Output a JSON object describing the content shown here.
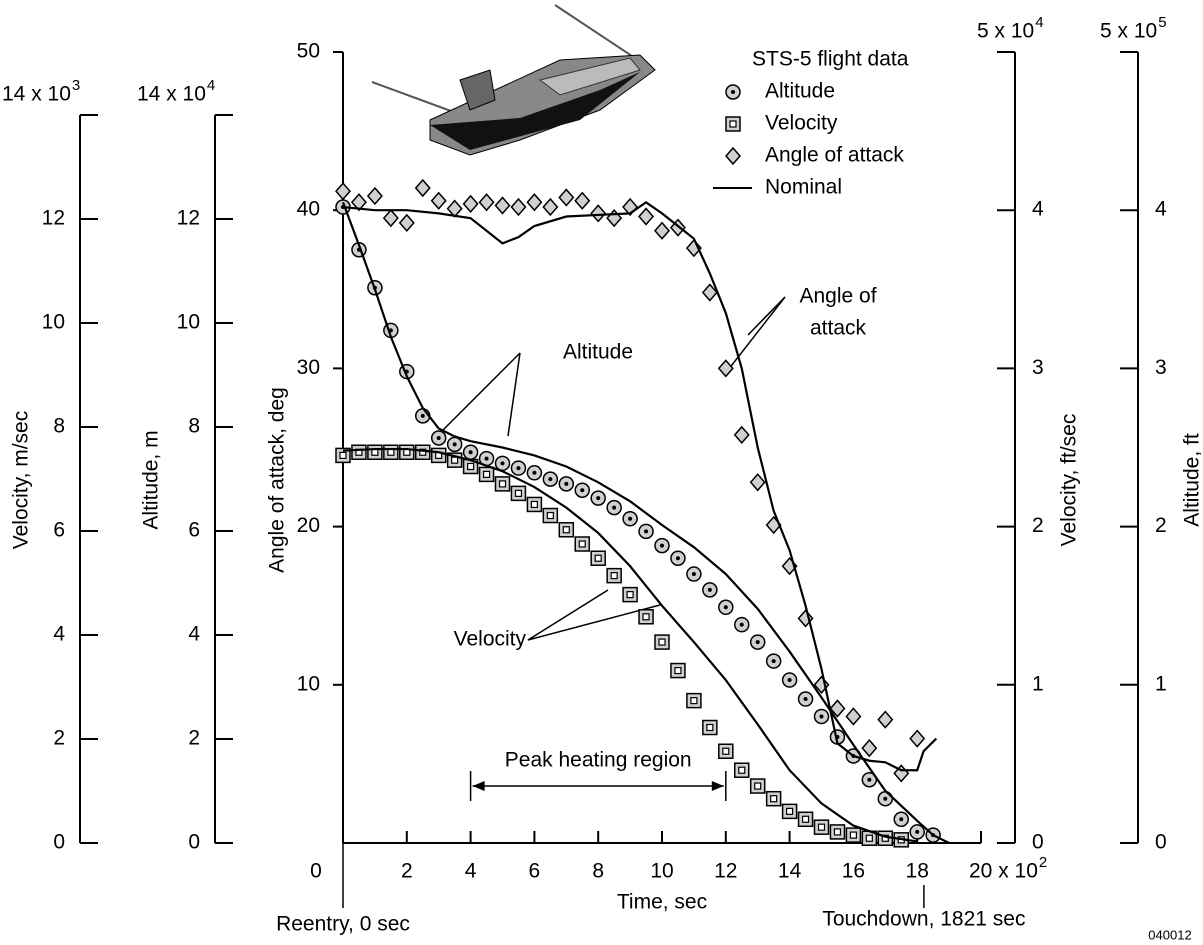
{
  "chart_data": {
    "type": "line",
    "xlabel": "Time, sec",
    "xlim": [
      0,
      20
    ],
    "xticks": [
      0,
      2,
      4,
      6,
      8,
      10,
      12,
      14,
      16,
      18,
      {
        "value": 20,
        "label": "20 x 10"
      }
    ],
    "x_exponent": "2",
    "ylabel": "Angle of attack, deg",
    "ylim": [
      0,
      50
    ],
    "yticks": [
      10,
      20,
      30,
      40,
      50
    ],
    "y2label": "Velocity, ft/sec",
    "y2lim": [
      0,
      5
    ],
    "y2ticks": [
      0,
      1,
      2,
      3,
      4,
      {
        "value": 5,
        "label": "5 x 10"
      }
    ],
    "y2_exponent": "4",
    "y3label": "Altitude, ft",
    "y3lim": [
      0,
      5
    ],
    "y3ticks": [
      0,
      1,
      2,
      3,
      4,
      {
        "value": 5,
        "label": "5 x 10"
      }
    ],
    "y3_exponent": "5",
    "metric_axes": [
      {
        "label": "Altitude, m",
        "lim": [
          0,
          14
        ],
        "ticks": [
          0,
          2,
          4,
          6,
          8,
          10,
          12,
          {
            "value": 14,
            "label": "14 x 10"
          }
        ],
        "exponent": "4"
      },
      {
        "label": "Velocity, m/sec",
        "lim": [
          0,
          14
        ],
        "ticks": [
          0,
          2,
          4,
          6,
          8,
          10,
          12,
          {
            "value": 14,
            "label": "14 x 10"
          }
        ],
        "exponent": "3"
      }
    ],
    "legend_title": "STS-5 flight data",
    "x": [
      0,
      0.5,
      1,
      1.5,
      2,
      2.5,
      3,
      3.5,
      4,
      4.5,
      5,
      5.5,
      6,
      6.5,
      7,
      7.5,
      8,
      8.5,
      9,
      9.5,
      10,
      10.5,
      11,
      11.5,
      12,
      12.5,
      13,
      13.5,
      14,
      14.5,
      15,
      15.5,
      16,
      16.5,
      17,
      17.5,
      18,
      18.5
    ],
    "series": [
      {
        "name": "Altitude",
        "marker": "circle",
        "axis": "y3",
        "color": "#000000",
        "values": [
          4.02,
          3.75,
          3.51,
          3.24,
          2.98,
          2.7,
          2.56,
          2.52,
          2.47,
          2.43,
          2.4,
          2.37,
          2.34,
          2.3,
          2.27,
          2.23,
          2.18,
          2.12,
          2.05,
          1.97,
          1.88,
          1.8,
          1.7,
          1.6,
          1.49,
          1.38,
          1.27,
          1.15,
          1.03,
          0.91,
          0.8,
          0.67,
          0.55,
          0.4,
          0.28,
          0.15,
          0.07,
          0.05
        ]
      },
      {
        "name": "Velocity",
        "marker": "square",
        "axis": "y2",
        "color": "#000000",
        "values": [
          2.45,
          2.47,
          2.47,
          2.47,
          2.47,
          2.47,
          2.45,
          2.42,
          2.38,
          2.33,
          2.27,
          2.21,
          2.14,
          2.07,
          1.98,
          1.89,
          1.8,
          1.69,
          1.57,
          1.43,
          1.27,
          1.09,
          0.9,
          0.73,
          0.58,
          0.46,
          0.36,
          0.28,
          0.2,
          0.15,
          0.1,
          0.07,
          0.05,
          0.03,
          0.03,
          0.02,
          null,
          null
        ]
      },
      {
        "name": "Angle of attack",
        "marker": "diamond",
        "axis": "y",
        "color": "#000000",
        "values": [
          41.2,
          40.5,
          40.9,
          39.5,
          39.2,
          41.4,
          40.6,
          40.1,
          40.4,
          40.5,
          40.3,
          40.2,
          40.5,
          40.2,
          40.8,
          40.6,
          39.8,
          39.5,
          40.2,
          39.6,
          38.7,
          38.9,
          37.6,
          34.8,
          30.0,
          25.8,
          22.8,
          20.1,
          17.5,
          14.2,
          10.0,
          8.5,
          8.0,
          6.0,
          7.8,
          4.4,
          6.6,
          null
        ]
      }
    ],
    "nominal": {
      "name": "Nominal",
      "color": "#000000",
      "curves": [
        {
          "axis": "y3",
          "x": [
            0,
            0.5,
            1,
            1.5,
            2,
            2.5,
            3,
            3.5,
            4,
            5,
            6,
            7,
            8,
            9,
            10,
            11,
            12,
            13,
            14,
            15,
            16,
            17,
            18,
            18.5,
            19
          ],
          "values": [
            4.05,
            3.78,
            3.5,
            3.2,
            2.95,
            2.75,
            2.62,
            2.57,
            2.54,
            2.5,
            2.45,
            2.38,
            2.28,
            2.16,
            2.01,
            1.87,
            1.7,
            1.48,
            1.21,
            0.92,
            0.62,
            0.33,
            0.14,
            0.05,
            0
          ]
        },
        {
          "axis": "y2",
          "x": [
            0,
            1,
            2,
            3,
            4,
            5,
            6,
            7,
            8,
            9,
            10,
            11,
            12,
            13,
            14,
            15,
            16,
            17,
            18
          ],
          "values": [
            2.48,
            2.49,
            2.49,
            2.47,
            2.42,
            2.35,
            2.25,
            2.12,
            1.96,
            1.75,
            1.5,
            1.27,
            1.03,
            0.75,
            0.46,
            0.25,
            0.11,
            0.04,
            0.01
          ]
        },
        {
          "axis": "y",
          "x": [
            0,
            1,
            2,
            3,
            4,
            5,
            5.5,
            6,
            7,
            8,
            9,
            9.5,
            10,
            10.5,
            11,
            11.5,
            12,
            12.5,
            13,
            13.5,
            14,
            14.5,
            15,
            15.5,
            16,
            16.5,
            17,
            17.5,
            18,
            18.2,
            18.6
          ],
          "values": [
            40.2,
            40.0,
            40.0,
            39.8,
            39.5,
            37.9,
            38.3,
            39.0,
            39.6,
            39.7,
            39.8,
            40.5,
            39.8,
            39.0,
            38.2,
            36.0,
            33.5,
            30.0,
            25.0,
            21.0,
            18.5,
            15.0,
            11.0,
            6.3,
            5.5,
            5.2,
            5.1,
            4.6,
            4.6,
            5.8,
            6.6
          ]
        }
      ]
    },
    "annotations": [
      "Altitude",
      "Velocity",
      "Angle of",
      "attack"
    ],
    "peak_heating": {
      "label": "Peak heating region",
      "start": 4,
      "end": 12
    },
    "reentry": {
      "label": "Reentry, 0 sec",
      "time": 0
    },
    "touchdown": {
      "label": "Touchdown, 1821 sec",
      "time": 18.21
    },
    "figure_id": "040012"
  }
}
